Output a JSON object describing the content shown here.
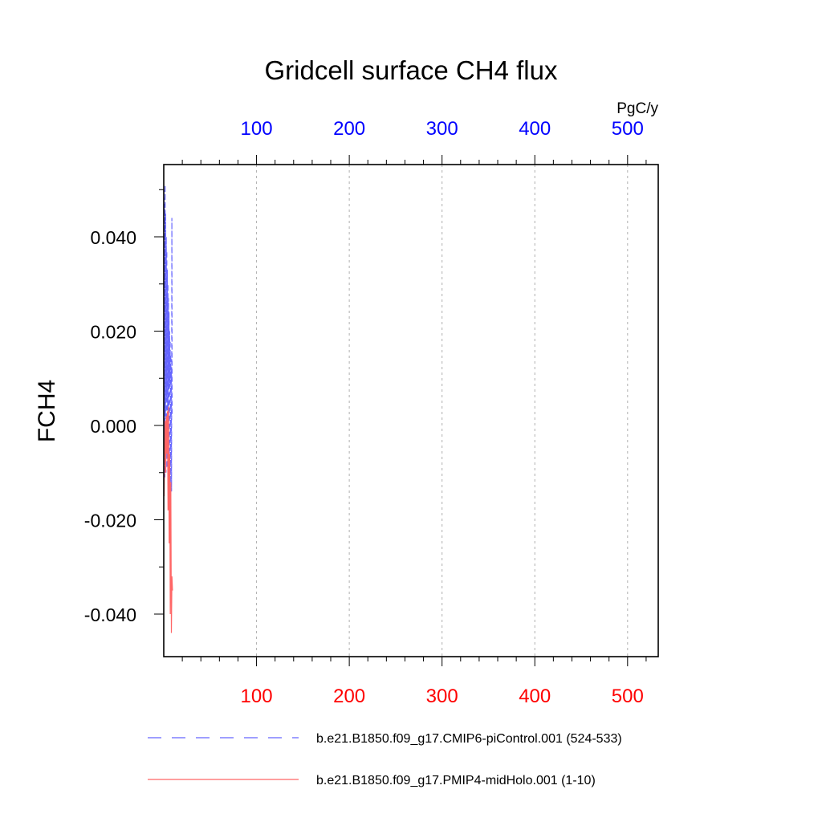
{
  "chart_data": {
    "type": "line",
    "title": "Gridcell surface CH4 flux",
    "ylabel": "FCH4",
    "units": "PgC/y",
    "xlim": [
      0,
      530
    ],
    "ylim": [
      -0.048,
      0.055
    ],
    "grid": "vertical dashed",
    "y_ticks": [
      0.04,
      0.02,
      0.0,
      -0.02,
      -0.04
    ],
    "y_tick_labels": [
      "0.040",
      "0.020",
      "0.000",
      "-0.020",
      "-0.040"
    ],
    "x_ticks": [
      100,
      200,
      300,
      400,
      500
    ],
    "top_axis_color": "#0000ff",
    "bottom_axis_color": "#ff0000",
    "series": [
      {
        "name": "b.e21.B1850.f09_g17.CMIP6-piControl.001 (524-533)",
        "color": "#6666ff",
        "dash": true,
        "axis": "top",
        "x": [
          0.3,
          0.6,
          0.9,
          1.2,
          1.5,
          1.8,
          2.1,
          2.4,
          2.7,
          3.0,
          3.3,
          3.6,
          3.9,
          4.2,
          4.5,
          4.8,
          5.1,
          5.4,
          5.7,
          6.0,
          6.3,
          6.6,
          6.9,
          7.2,
          7.5,
          7.8,
          8.1,
          8.4,
          8.7,
          9.0
        ],
        "values": [
          0.05,
          -0.008,
          0.047,
          -0.011,
          0.051,
          0.002,
          0.045,
          -0.01,
          0.04,
          0.006,
          0.037,
          -0.009,
          0.033,
          0.004,
          0.03,
          -0.012,
          0.027,
          0.008,
          0.024,
          -0.013,
          0.02,
          0.009,
          0.018,
          -0.014,
          0.015,
          0.01,
          0.012,
          -0.014,
          0.044,
          0.002
        ]
      },
      {
        "name": "b.e21.B1850.f09_g17.PMIP4-midHolo.001 (1-10)",
        "color": "#ff6666",
        "dash": false,
        "axis": "bottom",
        "x": [
          0.4,
          1.0,
          1.6,
          2.2,
          2.8,
          3.4,
          4.0,
          4.6,
          5.2,
          5.8,
          6.4,
          7.0,
          7.6,
          8.2,
          8.8,
          9.4
        ],
        "values": [
          -0.015,
          -0.004,
          0.001,
          -0.01,
          0.002,
          -0.006,
          0.003,
          -0.018,
          0.004,
          -0.025,
          -0.006,
          -0.04,
          -0.012,
          -0.044,
          -0.032,
          -0.035
        ]
      }
    ]
  }
}
